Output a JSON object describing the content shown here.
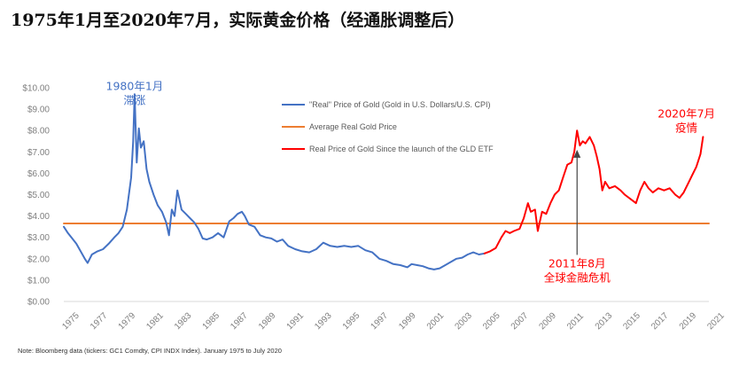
{
  "title": "1975年1月至2020年7月，实际黄金价格（经通胀调整后）",
  "source_note": "Note: Bloomberg data (tickers: GC1 Comdty, CPI INDX Index). January 1975 to July 2020",
  "colors": {
    "real_price": "#4472c4",
    "average": "#ed7d31",
    "gld_period": "#ff0000",
    "annotation_blue": "#4472c4",
    "annotation_red": "#ff0000",
    "axis": "#d9d9d9"
  },
  "annotations": [
    {
      "id": "peak-1980",
      "lines": [
        "1980年1月",
        "滞涨"
      ],
      "color": "blue",
      "x": 1980.05,
      "y": 9.9
    },
    {
      "id": "crisis-2011",
      "lines": [
        "2011年8月",
        "全球金融危机"
      ],
      "color": "red",
      "x": 2011.6,
      "y": 1.6,
      "arrow_to": 7.1
    },
    {
      "id": "covid-2020",
      "lines": [
        "2020年7月",
        "疫情"
      ],
      "color": "red",
      "x": 2019.4,
      "y": 8.6
    }
  ],
  "chart_data": {
    "type": "line",
    "title": "",
    "xlabel": "",
    "ylabel": "",
    "xlim": [
      1975,
      2021
    ],
    "ylim": [
      0,
      10
    ],
    "grid": false,
    "legend_position": "top-right",
    "y_ticks": [
      "$0.00",
      "$1.00",
      "$2.00",
      "$3.00",
      "$4.00",
      "$5.00",
      "$6.00",
      "$7.00",
      "$8.00",
      "$9.00",
      "$10.00"
    ],
    "y_tick_values": [
      0,
      1,
      2,
      3,
      4,
      5,
      6,
      7,
      8,
      9,
      10
    ],
    "x_ticks": [
      "1975",
      "1977",
      "1979",
      "1981",
      "1983",
      "1985",
      "1987",
      "1989",
      "1991",
      "1993",
      "1995",
      "1997",
      "1999",
      "2001",
      "2003",
      "2005",
      "2007",
      "2009",
      "2011",
      "2013",
      "2015",
      "2017",
      "2019",
      "2021"
    ],
    "x_tick_values": [
      1975,
      1977,
      1979,
      1981,
      1983,
      1985,
      1987,
      1989,
      1991,
      1993,
      1995,
      1997,
      1999,
      2001,
      2003,
      2005,
      2007,
      2009,
      2011,
      2013,
      2015,
      2017,
      2019,
      2021
    ],
    "series": [
      {
        "name": "\"Real\" Price of Gold (Gold in U.S. Dollars/U.S. CPI)",
        "color": "#4472c4",
        "x": [
          1975.0,
          1975.3,
          1975.6,
          1975.9,
          1976.2,
          1976.5,
          1976.7,
          1977.0,
          1977.4,
          1977.8,
          1978.2,
          1978.6,
          1978.9,
          1979.2,
          1979.5,
          1979.8,
          1979.95,
          1980.05,
          1980.2,
          1980.35,
          1980.5,
          1980.7,
          1980.9,
          1981.1,
          1981.4,
          1981.7,
          1982.0,
          1982.3,
          1982.5,
          1982.7,
          1982.9,
          1983.1,
          1983.4,
          1983.7,
          1984.0,
          1984.3,
          1984.6,
          1984.9,
          1985.2,
          1985.6,
          1986.0,
          1986.4,
          1986.8,
          1987.1,
          1987.4,
          1987.7,
          1987.9,
          1988.2,
          1988.6,
          1989.0,
          1989.4,
          1989.8,
          1990.2,
          1990.6,
          1991.0,
          1991.5,
          1992.0,
          1992.5,
          1993.0,
          1993.5,
          1994.0,
          1994.5,
          1995.0,
          1995.5,
          1996.0,
          1996.5,
          1997.0,
          1997.5,
          1998.0,
          1998.5,
          1999.0,
          1999.5,
          1999.8,
          2000.2,
          2000.6,
          2001.0,
          2001.4,
          2001.8,
          2002.2,
          2002.6,
          2003.0,
          2003.4,
          2003.8,
          2004.2,
          2004.6,
          2005.0
        ],
        "values": [
          3.5,
          3.2,
          2.95,
          2.7,
          2.35,
          2.0,
          1.8,
          2.2,
          2.35,
          2.45,
          2.7,
          3.0,
          3.2,
          3.5,
          4.3,
          5.8,
          7.5,
          9.7,
          6.5,
          8.1,
          7.2,
          7.5,
          6.2,
          5.6,
          5.0,
          4.5,
          4.2,
          3.7,
          3.1,
          4.3,
          4.0,
          5.2,
          4.3,
          4.1,
          3.9,
          3.7,
          3.4,
          2.95,
          2.9,
          3.0,
          3.2,
          3.0,
          3.75,
          3.9,
          4.1,
          4.2,
          4.0,
          3.6,
          3.5,
          3.1,
          3.0,
          2.95,
          2.8,
          2.9,
          2.6,
          2.45,
          2.35,
          2.3,
          2.45,
          2.75,
          2.6,
          2.55,
          2.6,
          2.55,
          2.6,
          2.4,
          2.3,
          2.0,
          1.9,
          1.75,
          1.7,
          1.6,
          1.75,
          1.7,
          1.65,
          1.55,
          1.5,
          1.55,
          1.7,
          1.85,
          2.0,
          2.05,
          2.2,
          2.3,
          2.2,
          2.25
        ]
      },
      {
        "name": "Average Real Gold Price",
        "color": "#ed7d31",
        "x": [
          1975.0,
          2021.0
        ],
        "values": [
          3.65,
          3.65
        ]
      },
      {
        "name": "Real Price of Gold Since the launch of the GLD ETF",
        "color": "#ff0000",
        "x": [
          2005.0,
          2005.4,
          2005.8,
          2006.2,
          2006.5,
          2006.8,
          2007.1,
          2007.5,
          2007.8,
          2008.1,
          2008.3,
          2008.6,
          2008.8,
          2009.1,
          2009.4,
          2009.7,
          2010.0,
          2010.3,
          2010.6,
          2010.9,
          2011.2,
          2011.4,
          2011.6,
          2011.8,
          2012.0,
          2012.2,
          2012.5,
          2012.8,
          2013.0,
          2013.2,
          2013.4,
          2013.6,
          2013.9,
          2014.3,
          2014.7,
          2015.0,
          2015.4,
          2015.8,
          2016.1,
          2016.4,
          2016.7,
          2017.0,
          2017.4,
          2017.8,
          2018.2,
          2018.6,
          2018.9,
          2019.2,
          2019.5,
          2019.8,
          2020.1,
          2020.4,
          2020.58
        ],
        "values": [
          2.25,
          2.35,
          2.5,
          3.0,
          3.3,
          3.2,
          3.3,
          3.4,
          3.9,
          4.6,
          4.2,
          4.3,
          3.3,
          4.2,
          4.1,
          4.6,
          5.0,
          5.2,
          5.8,
          6.4,
          6.5,
          7.0,
          8.0,
          7.3,
          7.5,
          7.4,
          7.7,
          7.3,
          6.8,
          6.2,
          5.2,
          5.6,
          5.3,
          5.4,
          5.2,
          5.0,
          4.8,
          4.6,
          5.2,
          5.6,
          5.3,
          5.1,
          5.3,
          5.2,
          5.3,
          5.0,
          4.85,
          5.1,
          5.5,
          5.9,
          6.3,
          6.9,
          7.7
        ]
      }
    ]
  }
}
